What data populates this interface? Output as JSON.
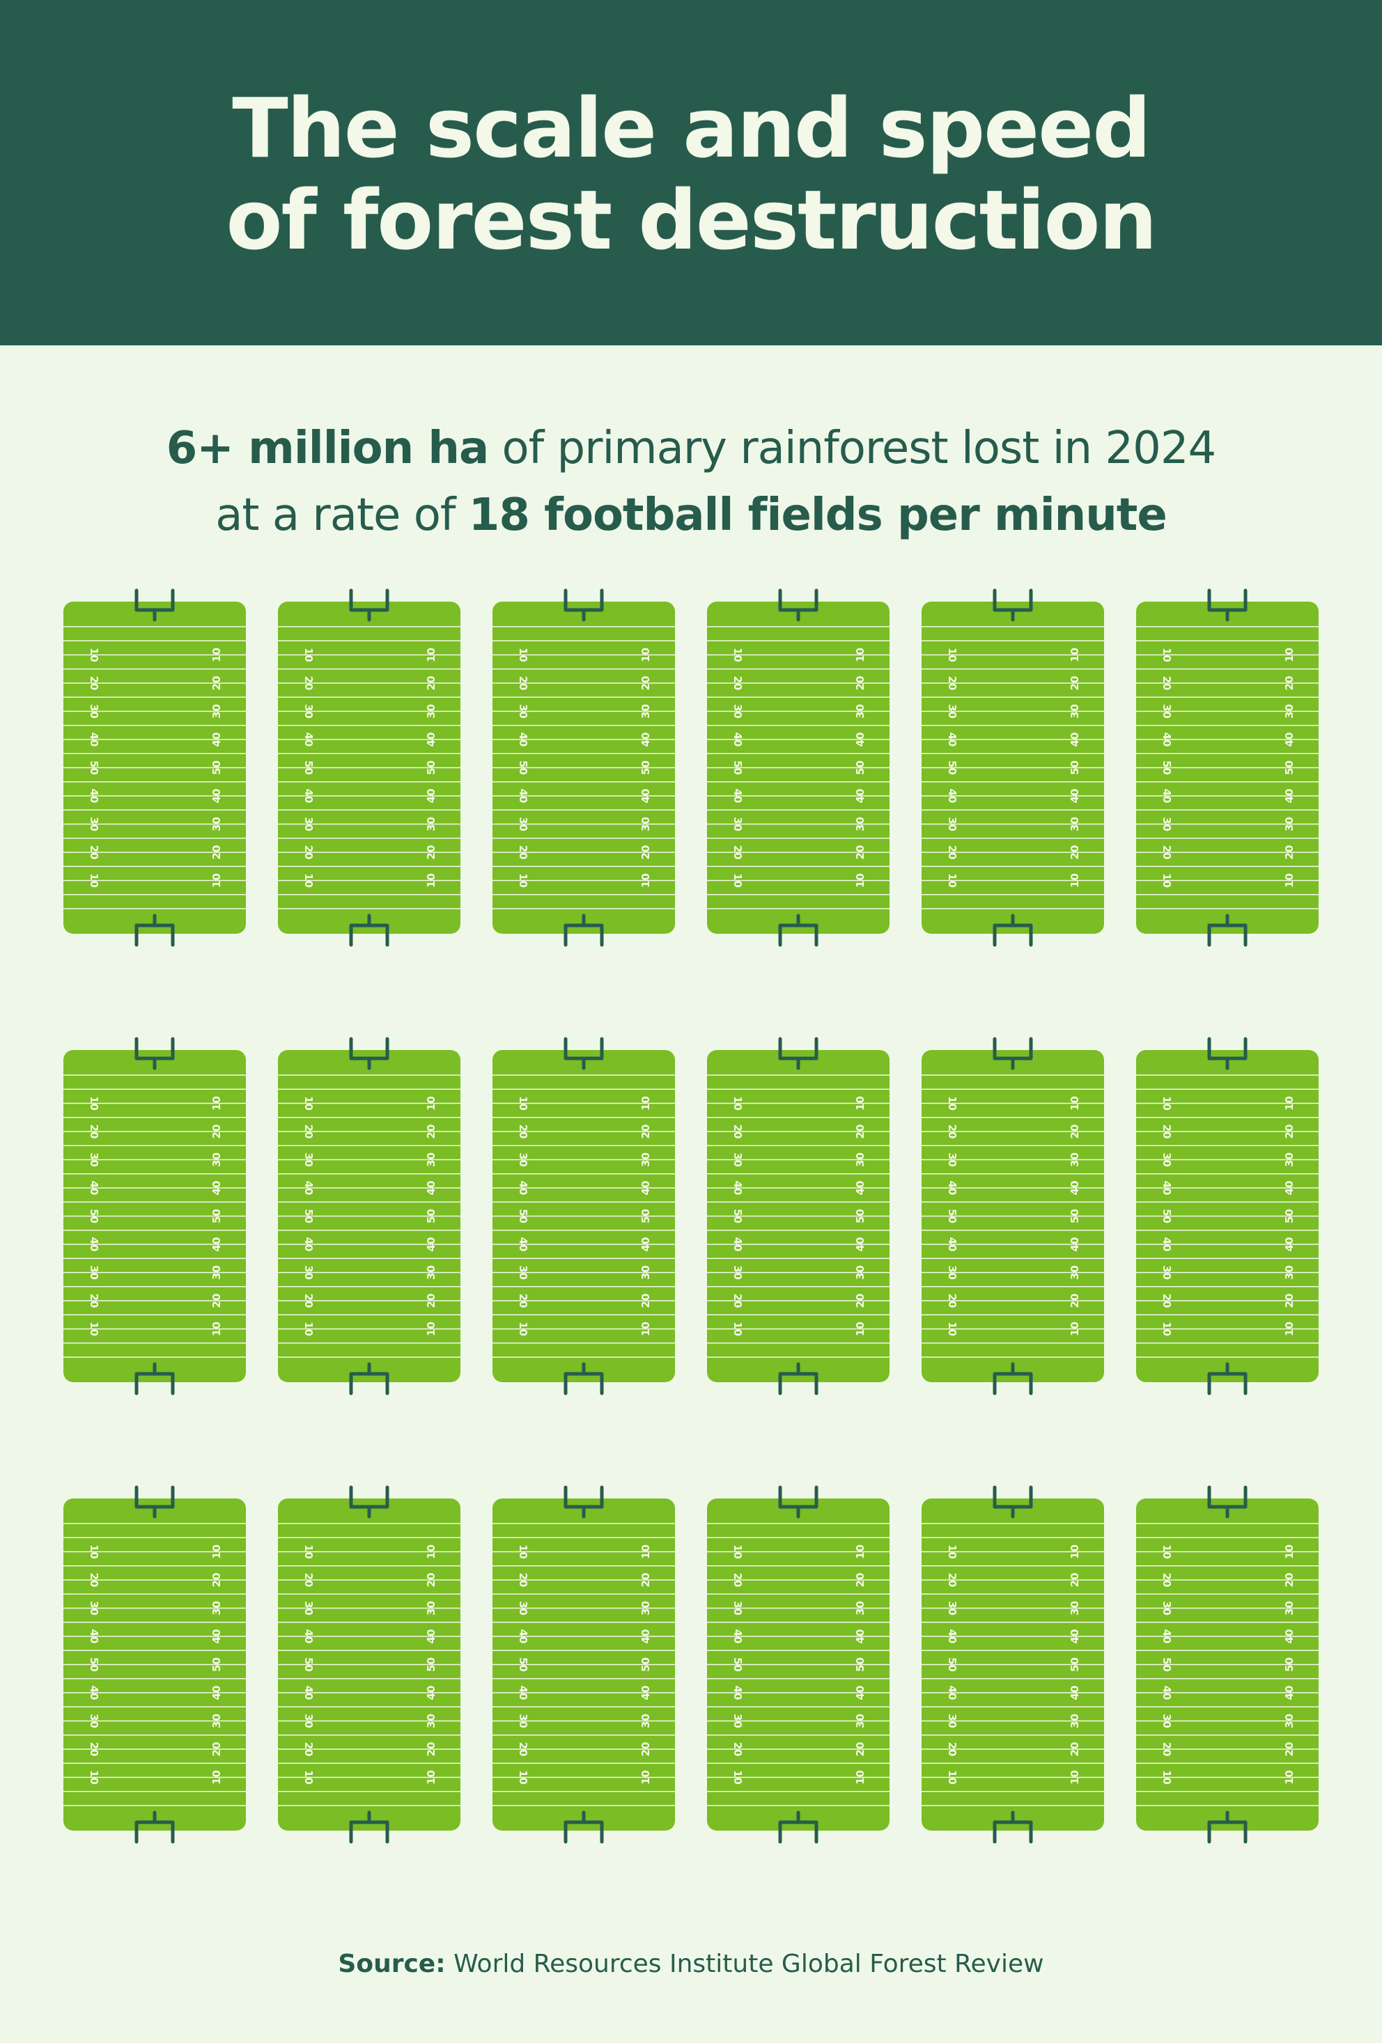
{
  "header": {
    "title_line1": "The scale and speed",
    "title_line2": "of forest destruction"
  },
  "subtitle": {
    "line1_bold": "6+ million ha",
    "line1_rest": " of primary rainforest lost in 2024",
    "line2_start": "at a rate of ",
    "line2_bold": "18 football fields per minute"
  },
  "fields": {
    "count": 18,
    "columns": 6,
    "rows": 3,
    "yard_numbers": [
      "10",
      "20",
      "30",
      "40",
      "50",
      "40",
      "30",
      "20",
      "10"
    ]
  },
  "source": {
    "label": "Source:",
    "text": " World Resources Institute Global Forest Review"
  },
  "colors": {
    "header_bg": "#275c4d",
    "page_bg": "#eff8e8",
    "field_green": "#7abd24",
    "goalpost": "#275c4d",
    "lines": "#f3f8e8"
  }
}
